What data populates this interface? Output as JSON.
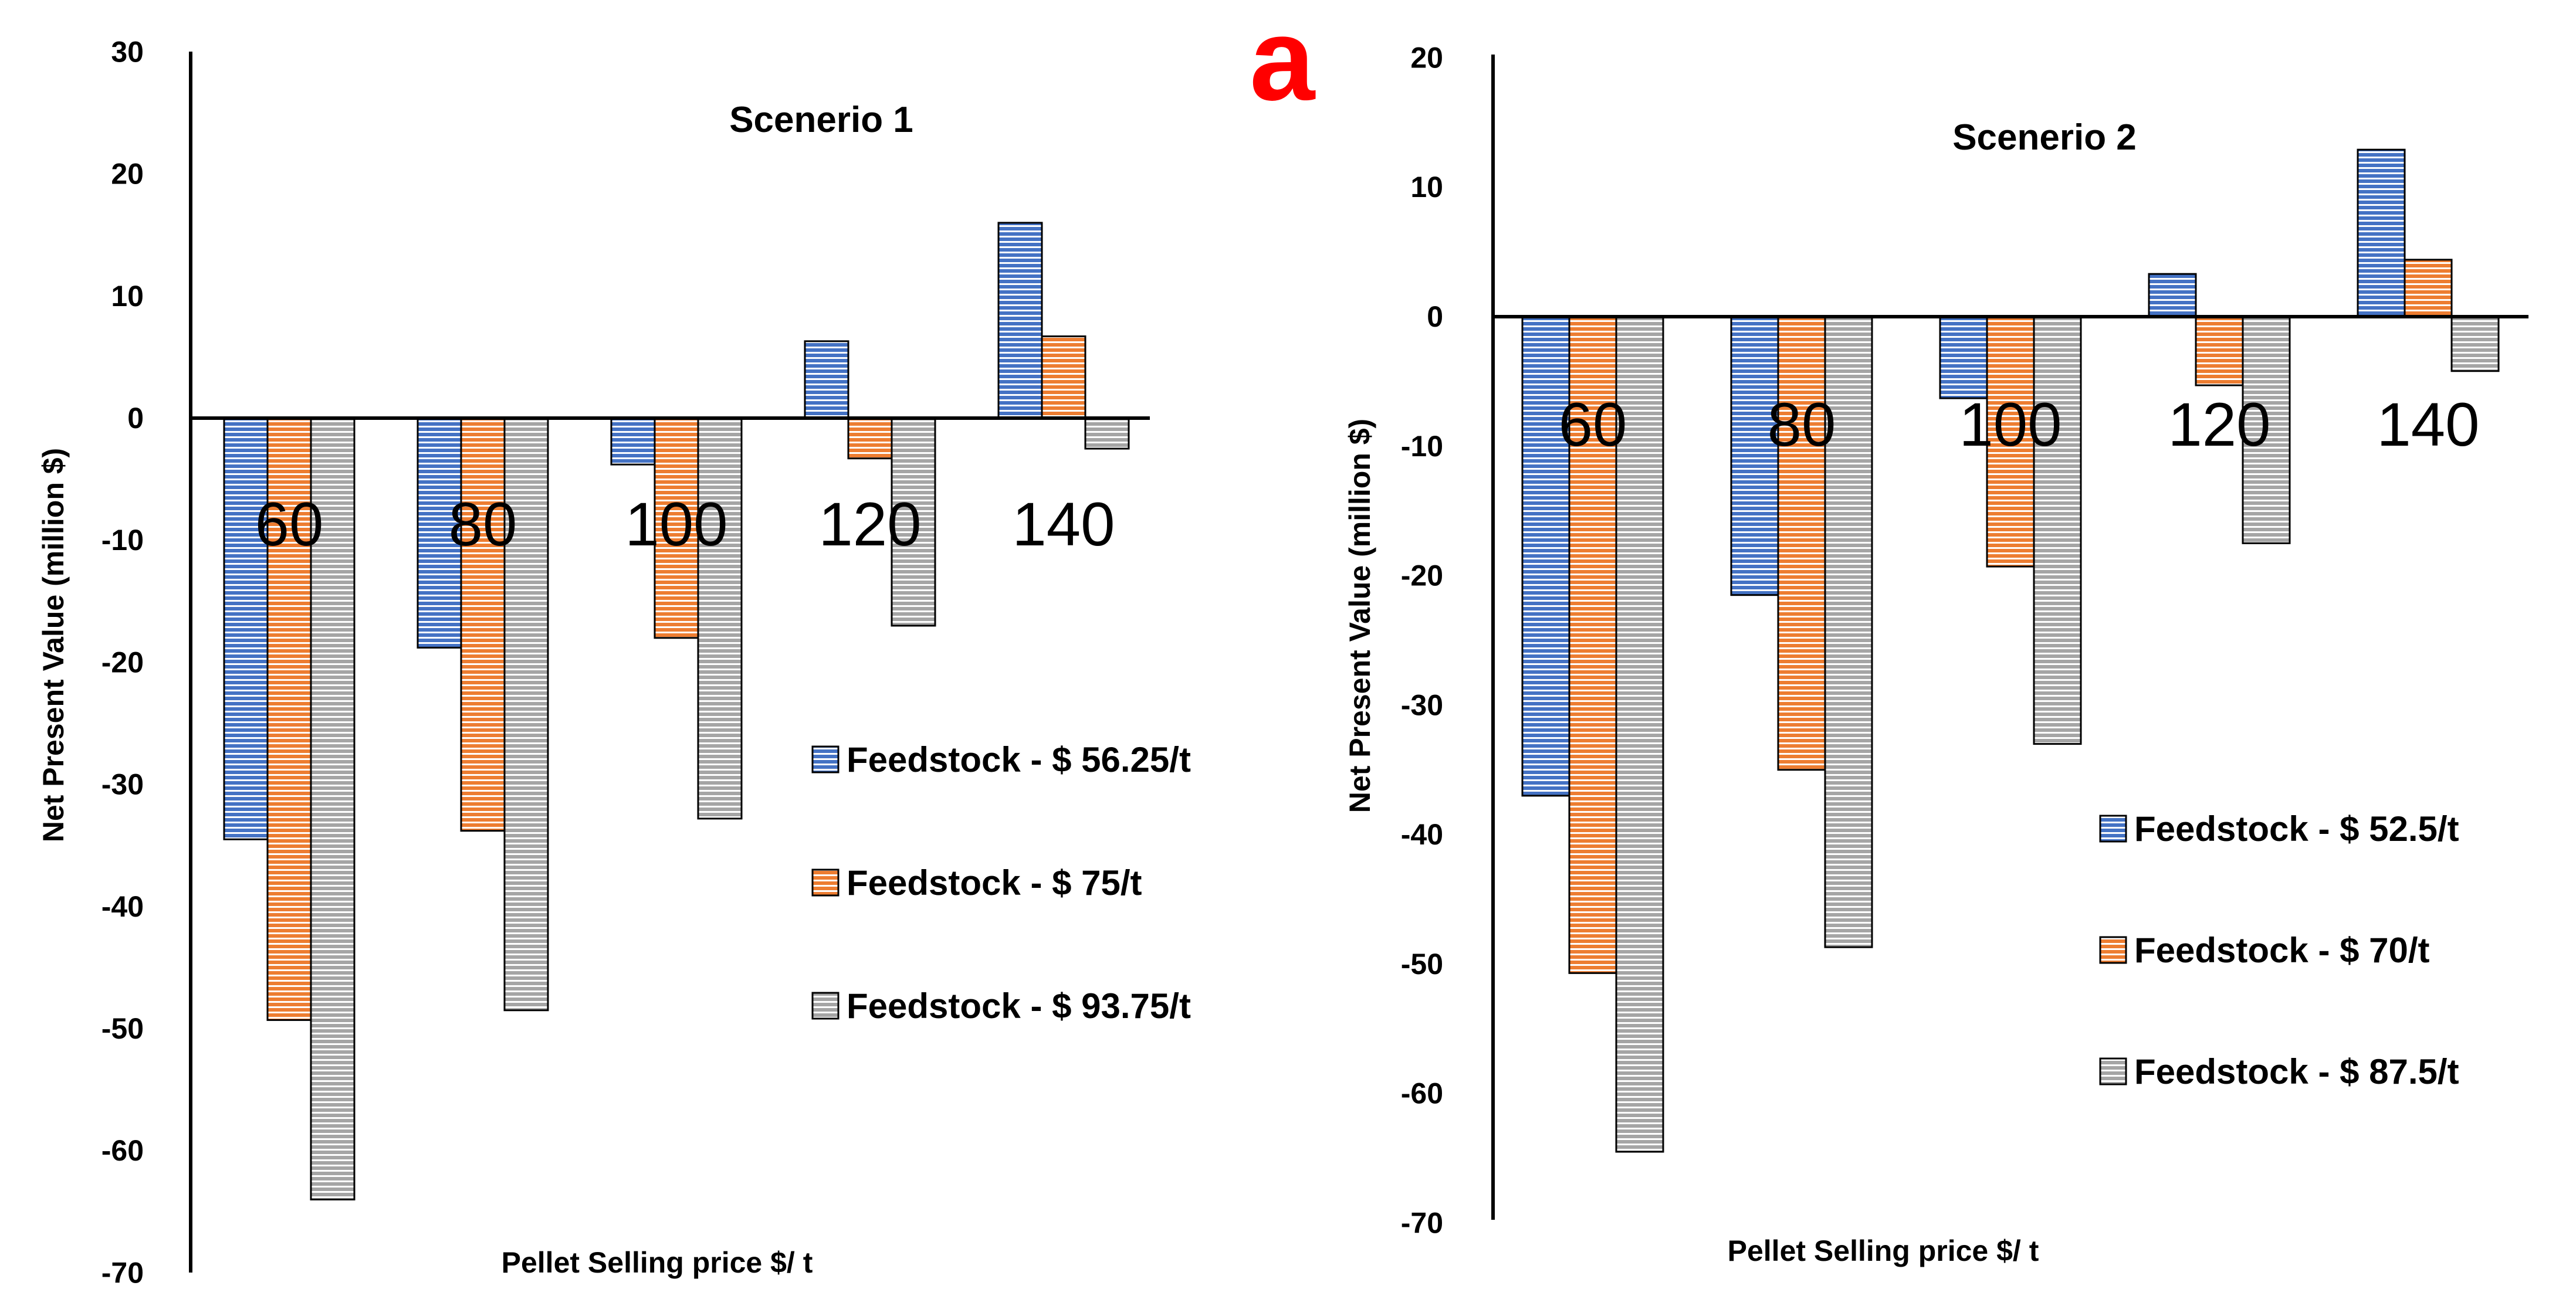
{
  "panel_letter": "a",
  "colors": {
    "blue": "#4472C4",
    "orange": "#ED7D31",
    "gray": "#A5A5A5",
    "panel_letter": "#FF0000"
  },
  "chart_data": [
    {
      "type": "bar",
      "title": "Scenerio 1",
      "xlabel": "Pellet Selling price  $/ t",
      "ylabel": "Net Present Value (million $)",
      "categories": [
        "60",
        "80",
        "100",
        "120",
        "140"
      ],
      "ylim": [
        -70,
        30
      ],
      "yticks": [
        "30",
        "20",
        "10",
        "0",
        "-10",
        "-20",
        "-30",
        "-40",
        "-50",
        "-60",
        "-70"
      ],
      "legend_position": "right",
      "series": [
        {
          "name": "Feedstock -  $ 56.25/t",
          "color": "#4472C4",
          "values": [
            -34.5,
            -18.8,
            -3.8,
            6.3,
            16.0
          ]
        },
        {
          "name": "Feedstock -  $ 75/t",
          "color": "#ED7D31",
          "values": [
            -49.3,
            -33.8,
            -18.0,
            -3.3,
            6.7
          ]
        },
        {
          "name": "Feedstock -  $ 93.75/t",
          "color": "#A5A5A5",
          "values": [
            -64.0,
            -48.5,
            -32.8,
            -17.0,
            -2.5
          ]
        }
      ]
    },
    {
      "type": "bar",
      "title": "Scenerio 2",
      "xlabel": "Pellet Selling price  $/ t",
      "ylabel": "Net Present Value (million $)",
      "categories": [
        "60",
        "80",
        "100",
        "120",
        "140"
      ],
      "ylim": [
        -70,
        20
      ],
      "yticks": [
        "20",
        "10",
        "0",
        "-10",
        "-20",
        "-30",
        "-40",
        "-50",
        "-60",
        "-70"
      ],
      "legend_position": "right",
      "series": [
        {
          "name": "Feedstock -  $ 52.5/t",
          "color": "#4472C4",
          "values": [
            -37.0,
            -21.5,
            -6.3,
            3.3,
            12.9
          ]
        },
        {
          "name": "Feedstock -  $ 70/t",
          "color": "#ED7D31",
          "values": [
            -50.7,
            -35.0,
            -19.3,
            -5.3,
            4.4
          ]
        },
        {
          "name": "Feedstock -  $ 87.5/t",
          "color": "#A5A5A5",
          "values": [
            -64.5,
            -48.7,
            -33.0,
            -17.5,
            -4.2
          ]
        }
      ]
    }
  ]
}
